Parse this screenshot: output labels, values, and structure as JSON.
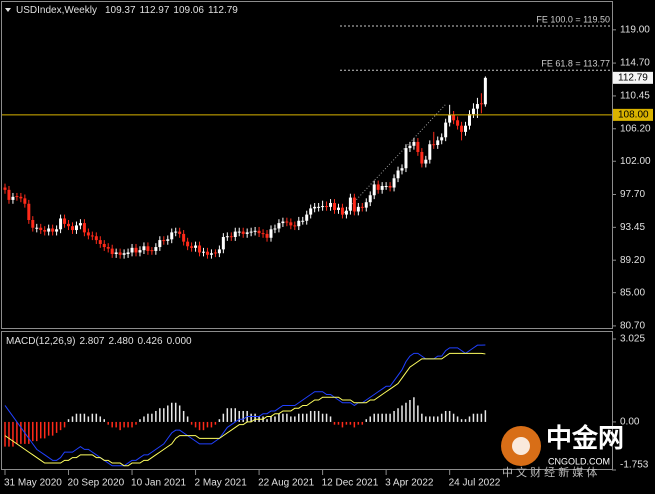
{
  "chart_data": [
    {
      "type": "candlestick",
      "title": "USDIndex,Weekly",
      "up_color": "#ffffff",
      "down_color": "#ff2a1a",
      "ohlc": [
        [
          98.6,
          99.1,
          97.8,
          98.3
        ],
        [
          98.3,
          98.8,
          96.5,
          97.0
        ],
        [
          97.0,
          97.9,
          96.5,
          97.4
        ],
        [
          97.5,
          97.9,
          96.9,
          97.4
        ],
        [
          97.4,
          97.9,
          96.7,
          97.2
        ],
        [
          97.2,
          97.7,
          96.0,
          96.5
        ],
        [
          96.5,
          97.0,
          93.9,
          94.4
        ],
        [
          94.4,
          94.9,
          92.9,
          93.4
        ],
        [
          93.3,
          93.9,
          92.8,
          93.4
        ],
        [
          93.4,
          93.9,
          92.6,
          93.1
        ],
        [
          93.1,
          93.6,
          92.4,
          92.9
        ],
        [
          92.9,
          93.8,
          92.4,
          93.3
        ],
        [
          93.3,
          93.8,
          92.4,
          92.9
        ],
        [
          92.9,
          93.7,
          92.4,
          93.2
        ],
        [
          93.2,
          95.1,
          92.7,
          94.6
        ],
        [
          94.6,
          95.1,
          93.4,
          93.9
        ],
        [
          93.9,
          94.4,
          93.1,
          93.6
        ],
        [
          93.6,
          94.1,
          92.6,
          93.1
        ],
        [
          93.1,
          94.2,
          92.6,
          93.7
        ],
        [
          93.7,
          94.5,
          93.2,
          94.0
        ],
        [
          94.0,
          94.5,
          92.3,
          92.8
        ],
        [
          92.8,
          93.3,
          91.9,
          92.4
        ],
        [
          92.4,
          92.9,
          91.8,
          92.3
        ],
        [
          92.3,
          92.8,
          91.3,
          91.8
        ],
        [
          91.8,
          92.3,
          90.8,
          91.3
        ],
        [
          91.3,
          91.8,
          90.4,
          90.9
        ],
        [
          90.9,
          91.4,
          90.2,
          90.7
        ],
        [
          90.7,
          91.2,
          89.5,
          90.0
        ],
        [
          90.0,
          90.7,
          89.5,
          90.2
        ],
        [
          90.2,
          90.7,
          89.4,
          89.9
        ],
        [
          89.9,
          90.6,
          89.4,
          90.1
        ],
        [
          90.0,
          90.7,
          89.5,
          90.2
        ],
        [
          90.2,
          91.3,
          89.7,
          90.8
        ],
        [
          90.8,
          91.3,
          89.7,
          90.2
        ],
        [
          90.2,
          91.0,
          89.7,
          90.5
        ],
        [
          90.5,
          91.5,
          90.0,
          91.0
        ],
        [
          91.0,
          91.5,
          89.9,
          90.4
        ],
        [
          90.5,
          90.9,
          89.9,
          90.4
        ],
        [
          90.4,
          91.4,
          89.9,
          90.9
        ],
        [
          90.9,
          92.3,
          90.4,
          91.8
        ],
        [
          91.8,
          92.3,
          91.2,
          91.7
        ],
        [
          91.7,
          92.4,
          91.2,
          91.9
        ],
        [
          91.9,
          93.3,
          91.4,
          92.8
        ],
        [
          92.8,
          93.4,
          92.3,
          92.9
        ],
        [
          92.9,
          93.4,
          92.1,
          92.6
        ],
        [
          92.6,
          93.1,
          91.1,
          91.6
        ],
        [
          91.6,
          92.1,
          90.5,
          91.0
        ],
        [
          91.0,
          91.5,
          90.3,
          90.8
        ],
        [
          90.8,
          91.6,
          90.3,
          91.1
        ],
        [
          91.1,
          91.6,
          89.7,
          90.2
        ],
        [
          90.2,
          90.8,
          89.7,
          90.3
        ],
        [
          90.3,
          90.8,
          89.4,
          89.9
        ],
        [
          89.9,
          90.6,
          89.4,
          90.1
        ],
        [
          90.2,
          90.6,
          89.6,
          90.1
        ],
        [
          90.1,
          91.1,
          89.6,
          90.6
        ],
        [
          90.6,
          92.7,
          90.1,
          92.2
        ],
        [
          92.2,
          92.8,
          91.7,
          92.3
        ],
        [
          92.3,
          92.8,
          91.7,
          92.2
        ],
        [
          92.2,
          93.4,
          91.7,
          92.9
        ],
        [
          92.8,
          93.4,
          92.3,
          92.9
        ],
        [
          92.9,
          93.4,
          92.1,
          92.6
        ],
        [
          92.6,
          93.3,
          92.1,
          92.8
        ],
        [
          92.8,
          93.4,
          92.3,
          92.9
        ],
        [
          92.9,
          93.5,
          92.4,
          93.0
        ],
        [
          93.0,
          93.5,
          92.2,
          92.7
        ],
        [
          92.7,
          93.2,
          92.1,
          92.6
        ],
        [
          92.6,
          93.1,
          91.6,
          92.1
        ],
        [
          92.1,
          93.7,
          91.6,
          93.2
        ],
        [
          93.2,
          93.8,
          92.7,
          93.3
        ],
        [
          93.3,
          94.5,
          92.8,
          94.0
        ],
        [
          94.0,
          94.7,
          93.5,
          94.2
        ],
        [
          94.2,
          94.7,
          93.6,
          94.1
        ],
        [
          94.1,
          94.6,
          93.2,
          93.7
        ],
        [
          93.7,
          94.2,
          93.1,
          93.6
        ],
        [
          93.6,
          94.8,
          93.1,
          94.3
        ],
        [
          94.2,
          94.8,
          93.8,
          94.3
        ],
        [
          94.3,
          95.6,
          93.8,
          95.1
        ],
        [
          95.1,
          96.4,
          94.6,
          95.9
        ],
        [
          95.9,
          96.6,
          95.4,
          96.1
        ],
        [
          96.0,
          96.6,
          95.5,
          96.1
        ],
        [
          96.1,
          96.9,
          95.6,
          96.2
        ],
        [
          96.2,
          96.8,
          95.6,
          96.1
        ],
        [
          96.1,
          97.1,
          95.6,
          96.6
        ],
        [
          96.6,
          97.1,
          95.2,
          95.7
        ],
        [
          95.7,
          96.5,
          95.2,
          96.0
        ],
        [
          96.0,
          96.5,
          94.6,
          95.1
        ],
        [
          95.1,
          96.1,
          94.6,
          95.6
        ],
        [
          95.6,
          97.8,
          95.1,
          97.3
        ],
        [
          97.3,
          97.8,
          95.0,
          95.5
        ],
        [
          95.5,
          96.6,
          95.0,
          96.1
        ],
        [
          96.1,
          96.6,
          95.5,
          96.0
        ],
        [
          96.0,
          97.2,
          95.5,
          96.7
        ],
        [
          96.7,
          98.1,
          96.2,
          97.6
        ],
        [
          97.6,
          99.5,
          97.1,
          99.0
        ],
        [
          99.0,
          99.5,
          97.8,
          98.3
        ],
        [
          98.3,
          99.3,
          97.8,
          98.8
        ],
        [
          98.7,
          99.3,
          98.3,
          98.8
        ],
        [
          98.8,
          99.3,
          98.1,
          98.6
        ],
        [
          98.6,
          100.3,
          98.1,
          99.8
        ],
        [
          99.8,
          101.3,
          99.3,
          100.8
        ],
        [
          100.8,
          101.6,
          100.3,
          101.1
        ],
        [
          101.1,
          104.2,
          100.6,
          103.7
        ],
        [
          103.7,
          104.5,
          103.2,
          104.0
        ],
        [
          104.0,
          105.0,
          103.5,
          104.5
        ],
        [
          104.5,
          105.0,
          102.7,
          103.2
        ],
        [
          103.2,
          103.7,
          101.2,
          101.7
        ],
        [
          101.7,
          102.7,
          101.2,
          102.2
        ],
        [
          102.2,
          104.7,
          101.7,
          104.2
        ],
        [
          104.2,
          105.8,
          103.6,
          104.1
        ],
        [
          104.1,
          105.2,
          103.6,
          104.7
        ],
        [
          104.7,
          105.6,
          104.2,
          105.1
        ],
        [
          105.1,
          107.5,
          104.6,
          107.0
        ],
        [
          107.0,
          109.3,
          106.5,
          108.0
        ],
        [
          108.0,
          108.5,
          106.8,
          107.3
        ],
        [
          107.3,
          107.8,
          106.1,
          106.6
        ],
        [
          106.6,
          107.1,
          104.7,
          105.8
        ],
        [
          105.8,
          107.1,
          105.3,
          106.6
        ],
        [
          106.6,
          108.6,
          106.1,
          108.1
        ],
        [
          108.1,
          109.5,
          107.6,
          108.8
        ],
        [
          108.8,
          110.2,
          107.6,
          109.4
        ],
        [
          109.5,
          110.8,
          108.2,
          109.4
        ],
        [
          109.37,
          112.97,
          109.06,
          112.79
        ]
      ],
      "ylim": [
        80.3,
        122.6
      ],
      "yticks": [
        {
          "value": 119,
          "label": "119.00"
        },
        {
          "value": 114.7,
          "label": "114.70"
        },
        110.45,
        {
          "value": 106.2,
          "label": "106.20"
        },
        {
          "value": 102,
          "label": "102.00"
        },
        {
          "value": 97.7,
          "label": "97.70"
        },
        93.45,
        {
          "value": 89.2,
          "label": "89.20"
        },
        {
          "value": 85,
          "label": "85.00"
        },
        {
          "value": 80.7,
          "label": "80.70"
        }
      ],
      "xticks": [
        {
          "value": 0,
          "label": "31 May 2020"
        },
        {
          "value": 16,
          "label": "20 Sep 2020"
        },
        {
          "value": 32,
          "label": "10 Jan 2021"
        },
        {
          "value": 48,
          "label": "2 May 2021"
        },
        {
          "value": 64,
          "label": "22 Aug 2021"
        },
        {
          "value": 80,
          "label": "12 Dec 2021"
        },
        {
          "value": 96,
          "label": "3 Apr 2022"
        },
        {
          "value": 112,
          "label": "24 Jul 2022"
        }
      ],
      "price_line": {
        "value": 108,
        "label": "108.00",
        "color": "#d9b300"
      },
      "levels": [
        {
          "label": "FE 100.0 = 119.50",
          "value": 119.5
        },
        {
          "label": "FE 61.8 = 113.77",
          "value": 113.77
        }
      ]
    },
    {
      "type": "macd",
      "title": "MACD(12,26,9)",
      "status": [
        "2.807",
        "2.480",
        "0.426",
        "0.000"
      ],
      "ylim": [
        -1.753,
        3.28
      ],
      "yticks": [
        3.025,
        {
          "value": 0,
          "label": "0.00"
        },
        -1.753
      ],
      "bars": {
        "up_color": "#e8e8e8",
        "down_color": "#ff2a1a",
        "values": [
          -0.9,
          -0.9,
          -0.9,
          -0.8,
          -0.8,
          -0.8,
          -0.8,
          -0.7,
          -0.7,
          -0.6,
          -0.6,
          -0.5,
          -0.5,
          -0.4,
          -0.3,
          -0.2,
          0.1,
          0.2,
          0.3,
          0.3,
          0.3,
          0.2,
          0.3,
          0.3,
          0.2,
          0.1,
          -0.1,
          -0.2,
          -0.2,
          -0.3,
          -0.2,
          -0.2,
          -0.2,
          -0.1,
          0.1,
          0.2,
          0.3,
          0.3,
          0.4,
          0.5,
          0.5,
          0.6,
          0.7,
          0.7,
          0.6,
          0.4,
          0.2,
          -0.1,
          -0.2,
          -0.3,
          -0.3,
          -0.2,
          -0.2,
          -0.1,
          0.1,
          0.3,
          0.5,
          0.5,
          0.5,
          0.4,
          0.4,
          0.4,
          0.3,
          0.3,
          0.2,
          0.2,
          0.1,
          0.2,
          0.2,
          0.3,
          0.3,
          0.3,
          0.2,
          0.2,
          0.3,
          0.3,
          0.3,
          0.4,
          0.4,
          0.4,
          0.3,
          0.3,
          0.2,
          -0.1,
          -0.1,
          -0.2,
          -0.1,
          -0.1,
          -0.2,
          -0.1,
          -0.1,
          0.1,
          0.2,
          0.3,
          0.3,
          0.3,
          0.3,
          0.3,
          0.4,
          0.5,
          0.6,
          0.7,
          0.8,
          0.9,
          0.6,
          0.3,
          0.2,
          0.2,
          0.2,
          0.2,
          0.3,
          0.4,
          0.4,
          0.3,
          0.2,
          0.1,
          0.1,
          0.2,
          0.3,
          0.3,
          0.3,
          0.426
        ]
      },
      "lines": [
        {
          "color": "#2040ff",
          "values": [
            0.6,
            0.4,
            0.2,
            0.0,
            -0.2,
            -0.4,
            -0.6,
            -0.8,
            -1.0,
            -1.1,
            -1.2,
            -1.3,
            -1.4,
            -1.4,
            -1.3,
            -1.1,
            -1.1,
            -1.1,
            -1.0,
            -0.9,
            -1.0,
            -1.0,
            -1.1,
            -1.2,
            -1.3,
            -1.4,
            -1.5,
            -1.6,
            -1.6,
            -1.6,
            -1.6,
            -1.5,
            -1.4,
            -1.4,
            -1.3,
            -1.2,
            -1.2,
            -1.1,
            -1.0,
            -0.9,
            -0.8,
            -0.6,
            -0.4,
            -0.3,
            -0.3,
            -0.4,
            -0.5,
            -0.6,
            -0.7,
            -0.8,
            -0.8,
            -0.8,
            -0.8,
            -0.7,
            -0.6,
            -0.4,
            -0.2,
            -0.1,
            0.0,
            0.1,
            0.1,
            0.2,
            0.2,
            0.2,
            0.2,
            0.3,
            0.3,
            0.4,
            0.4,
            0.5,
            0.6,
            0.6,
            0.6,
            0.6,
            0.7,
            0.8,
            0.9,
            1.0,
            1.1,
            1.1,
            1.1,
            1.0,
            1.0,
            0.9,
            0.8,
            0.7,
            0.7,
            0.7,
            0.6,
            0.7,
            0.7,
            0.8,
            0.9,
            1.0,
            1.1,
            1.2,
            1.3,
            1.3,
            1.5,
            1.7,
            1.9,
            2.2,
            2.4,
            2.5,
            2.5,
            2.4,
            2.3,
            2.3,
            2.3,
            2.4,
            2.4,
            2.6,
            2.7,
            2.7,
            2.7,
            2.6,
            2.5,
            2.6,
            2.7,
            2.8,
            2.8,
            2.807
          ]
        },
        {
          "color": "#ffff60",
          "values": [
            -0.5,
            -0.6,
            -0.7,
            -0.8,
            -0.9,
            -1.0,
            -1.1,
            -1.2,
            -1.3,
            -1.4,
            -1.5,
            -1.5,
            -1.5,
            -1.5,
            -1.5,
            -1.4,
            -1.4,
            -1.3,
            -1.3,
            -1.2,
            -1.2,
            -1.2,
            -1.2,
            -1.3,
            -1.3,
            -1.4,
            -1.4,
            -1.5,
            -1.5,
            -1.5,
            -1.6,
            -1.6,
            -1.5,
            -1.5,
            -1.5,
            -1.4,
            -1.4,
            -1.3,
            -1.2,
            -1.1,
            -1.0,
            -0.9,
            -0.8,
            -0.6,
            -0.5,
            -0.5,
            -0.5,
            -0.5,
            -0.5,
            -0.6,
            -0.6,
            -0.6,
            -0.6,
            -0.6,
            -0.6,
            -0.5,
            -0.4,
            -0.3,
            -0.2,
            -0.1,
            -0.1,
            0.0,
            0.0,
            0.1,
            0.1,
            0.1,
            0.2,
            0.2,
            0.3,
            0.3,
            0.4,
            0.4,
            0.4,
            0.5,
            0.5,
            0.6,
            0.6,
            0.7,
            0.8,
            0.8,
            0.9,
            0.9,
            0.9,
            0.9,
            0.9,
            0.8,
            0.8,
            0.8,
            0.7,
            0.7,
            0.7,
            0.7,
            0.8,
            0.8,
            0.9,
            1.0,
            1.1,
            1.2,
            1.3,
            1.4,
            1.6,
            1.8,
            2.0,
            2.1,
            2.2,
            2.3,
            2.3,
            2.3,
            2.3,
            2.3,
            2.3,
            2.4,
            2.5,
            2.5,
            2.5,
            2.5,
            2.5,
            2.5,
            2.5,
            2.5,
            2.5,
            2.48
          ]
        }
      ]
    }
  ],
  "watermark": {
    "brand": "中金网",
    "site": "CNGOLD.COM",
    "tagline": "中 文 财 经 新 媒 体"
  }
}
